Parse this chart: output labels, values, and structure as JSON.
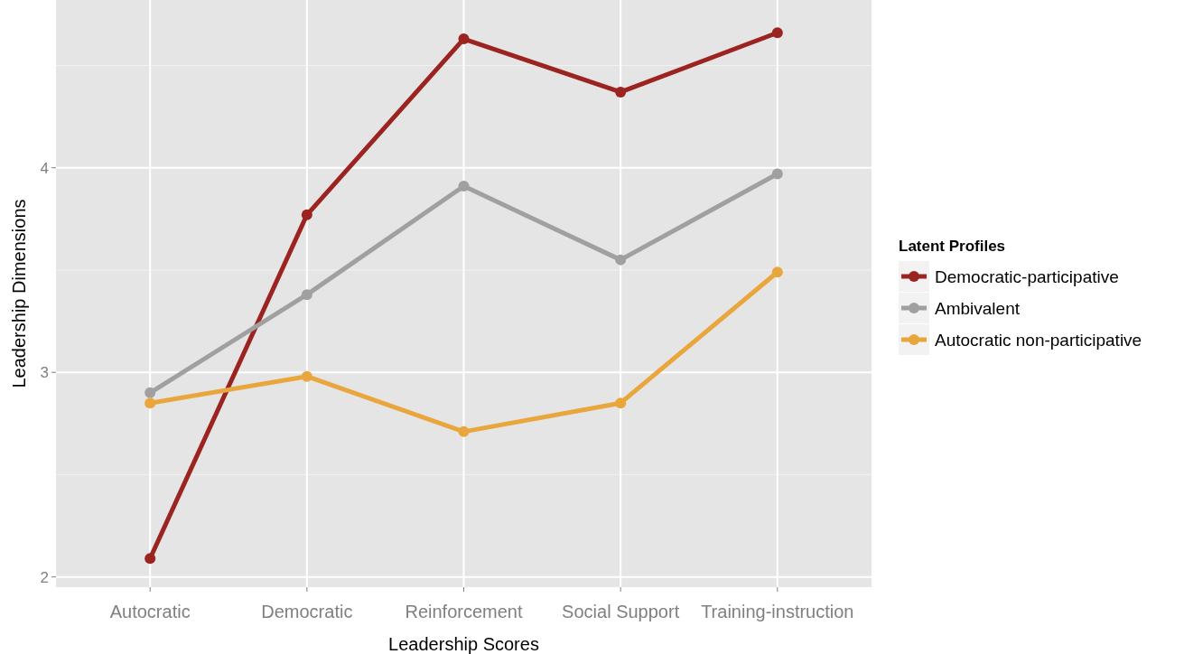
{
  "chart_data": {
    "type": "line",
    "xlabel": "Leadership Scores",
    "ylabel": "Leadership Dimensions",
    "legend_title": "Latent Profiles",
    "categories": [
      "Autocratic",
      "Democratic",
      "Reinforcement",
      "Social Support",
      "Training-instruction"
    ],
    "series": [
      {
        "name": "Democratic-participative",
        "color": "#9b2320",
        "values": [
          2.09,
          3.77,
          4.63,
          4.37,
          4.66
        ]
      },
      {
        "name": "Ambivalent",
        "color": "#a0a0a0",
        "values": [
          2.9,
          3.38,
          3.91,
          3.55,
          3.97
        ]
      },
      {
        "name": "Autocratic non-participative",
        "color": "#e8a63c",
        "values": [
          2.85,
          2.98,
          2.71,
          2.85,
          3.49
        ]
      }
    ],
    "ylim": [
      1.95,
      4.82
    ],
    "yticks": [
      2,
      3,
      4
    ],
    "grid": true,
    "legend": "right",
    "marker": "circle",
    "line_style": "solid"
  }
}
